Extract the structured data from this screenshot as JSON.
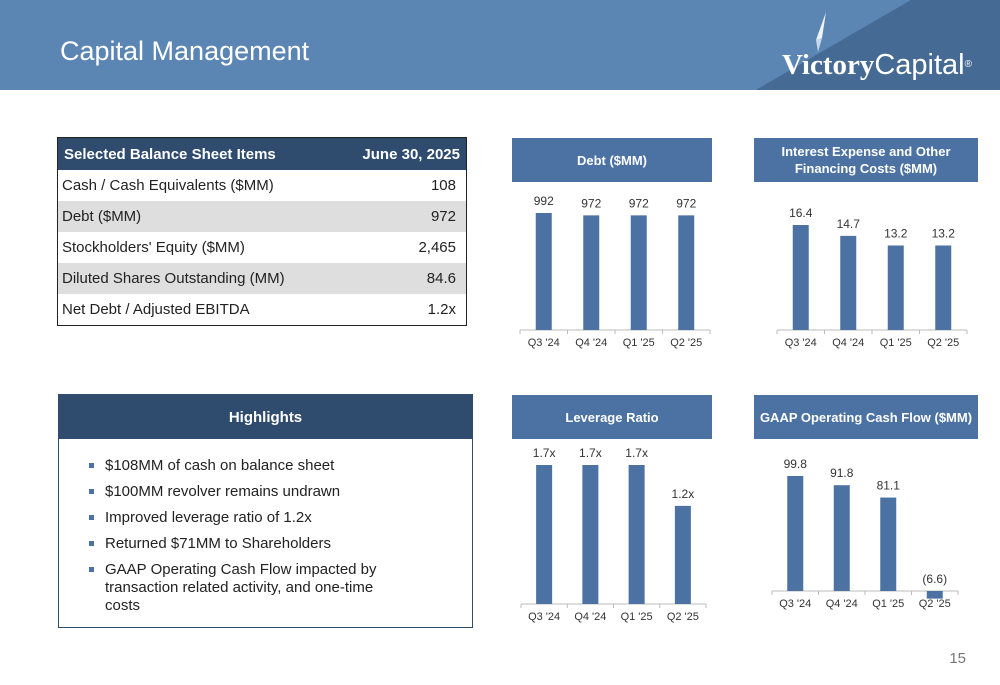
{
  "header": {
    "title": "Capital Management",
    "logo_text_bold": "Victory",
    "logo_text_regular": "Capital",
    "logo_reg": "®"
  },
  "balance_sheet": {
    "header_label": "Selected Balance Sheet Items",
    "header_value": "June 30, 2025",
    "rows": [
      {
        "label": "Cash / Cash Equivalents ($MM)",
        "value": "108"
      },
      {
        "label": "Debt ($MM)",
        "value": "972"
      },
      {
        "label": "Stockholders' Equity ($MM)",
        "value": "2,465"
      },
      {
        "label": "Diluted Shares Outstanding (MM)",
        "value": "84.6"
      },
      {
        "label": "Net Debt / Adjusted EBITDA",
        "value": "1.2x"
      }
    ]
  },
  "highlights": {
    "title": "Highlights",
    "items": [
      "$108MM of cash on balance sheet",
      "$100MM revolver remains undrawn",
      "Improved leverage ratio of 1.2x",
      "Returned $71MM to Shareholders",
      "GAAP Operating Cash Flow impacted by transaction related activity, and one-time costs"
    ]
  },
  "colors": {
    "bar": "#4b72a3",
    "dark_header": "#2f4b6e",
    "header_bg": "#5b86b3"
  },
  "chart_data": [
    {
      "id": "debt",
      "type": "bar",
      "title": "Debt ($MM)",
      "categories": [
        "Q3 '24",
        "Q4 '24",
        "Q1 '25",
        "Q2 '25"
      ],
      "values": [
        992,
        972,
        972,
        972
      ],
      "labels": [
        "992",
        "972",
        "972",
        "972"
      ],
      "ylim": [
        0,
        1100
      ]
    },
    {
      "id": "interest",
      "type": "bar",
      "title": "Interest Expense and Other Financing Costs ($MM)",
      "categories": [
        "Q3 '24",
        "Q4 '24",
        "Q1 '25",
        "Q2 '25"
      ],
      "values": [
        16.4,
        14.7,
        13.2,
        13.2
      ],
      "labels": [
        "16.4",
        "14.7",
        "13.2",
        "13.2"
      ],
      "ylim": [
        0,
        18.5
      ]
    },
    {
      "id": "leverage",
      "type": "bar",
      "title": "Leverage Ratio",
      "categories": [
        "Q3 '24",
        "Q4 '24",
        "Q1 '25",
        "Q2 '25"
      ],
      "values": [
        1.7,
        1.7,
        1.7,
        1.2
      ],
      "labels": [
        "1.7x",
        "1.7x",
        "1.7x",
        "1.2x"
      ],
      "ylim": [
        0,
        1.85
      ]
    },
    {
      "id": "cashflow",
      "type": "bar",
      "title": "GAAP Operating Cash Flow ($MM)",
      "categories": [
        "Q3 '24",
        "Q4 '24",
        "Q1 '25",
        "Q2 '25"
      ],
      "values": [
        99.8,
        91.8,
        81.1,
        -6.6
      ],
      "labels": [
        "99.8",
        "91.8",
        "81.1",
        "(6.6)"
      ],
      "ylim": [
        -10,
        115
      ]
    }
  ],
  "page_number": "15"
}
